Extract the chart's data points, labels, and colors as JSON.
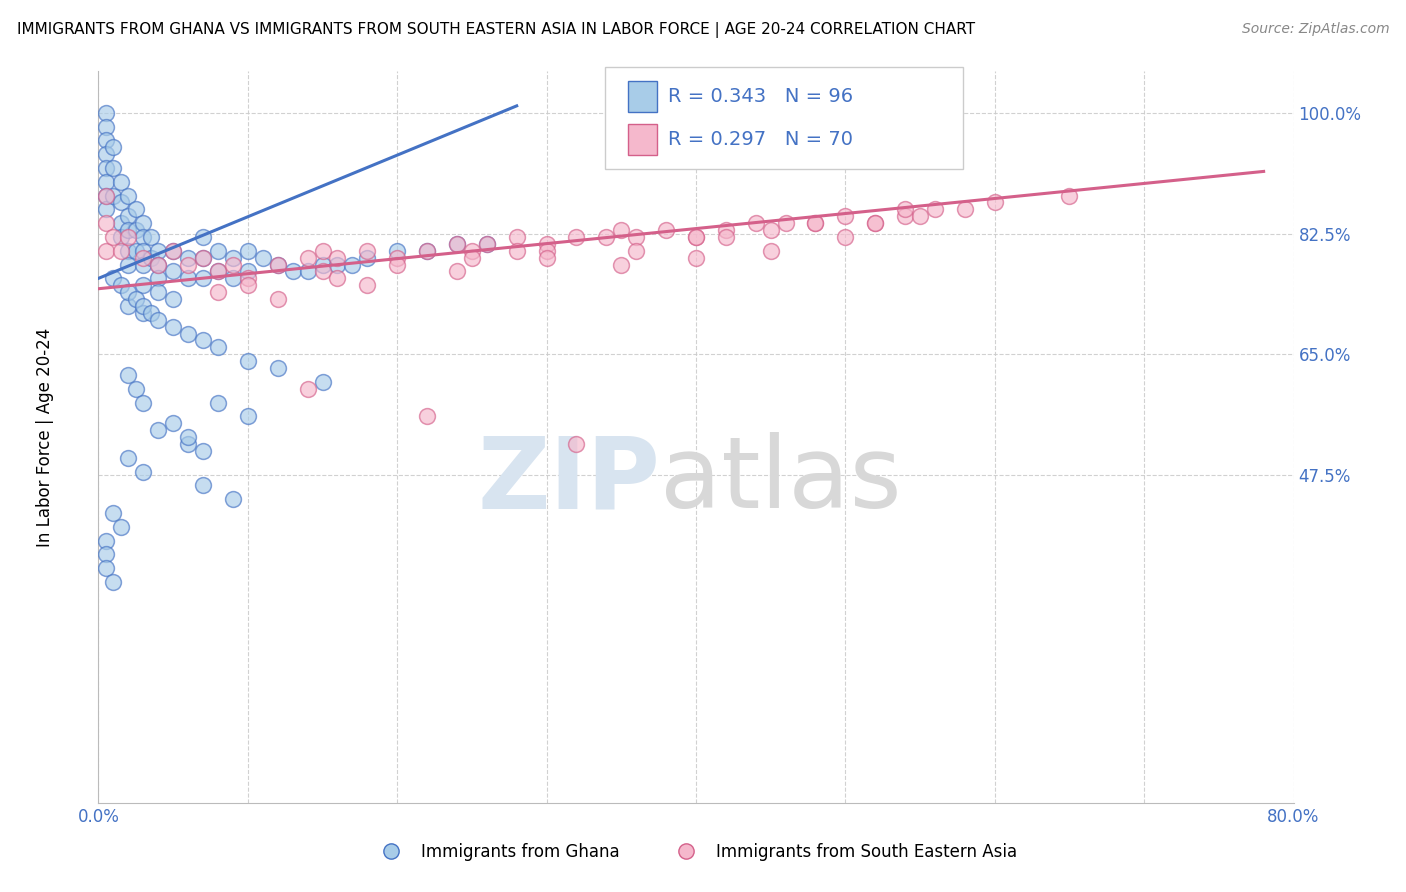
{
  "title": "IMMIGRANTS FROM GHANA VS IMMIGRANTS FROM SOUTH EASTERN ASIA IN LABOR FORCE | AGE 20-24 CORRELATION CHART",
  "source": "Source: ZipAtlas.com",
  "ylabel": "In Labor Force | Age 20-24",
  "ghana_R": 0.343,
  "ghana_N": 96,
  "sea_R": 0.297,
  "sea_N": 70,
  "ghana_color": "#a8cce8",
  "ghana_edge_color": "#4472c4",
  "sea_color": "#f5b8cc",
  "sea_edge_color": "#d4608a",
  "ghana_line_color": "#4472c4",
  "sea_line_color": "#d4608a",
  "watermark_zip_color": "#d8e4f0",
  "watermark_atlas_color": "#d8d8d8",
  "xlim_min": 0.0,
  "xlim_max": 0.8,
  "ylim_min": 0.0,
  "ylim_max": 1.06,
  "y_ticks": [
    0.475,
    0.65,
    0.825,
    1.0
  ],
  "y_tick_labels": [
    "47.5%",
    "65.0%",
    "82.5%",
    "100.0%"
  ],
  "x_ticks": [
    0.0,
    0.1,
    0.2,
    0.3,
    0.4,
    0.5,
    0.6,
    0.7,
    0.8
  ],
  "ghana_line_x0": 0.0,
  "ghana_line_x1": 0.28,
  "ghana_line_y0": 0.76,
  "ghana_line_y1": 1.01,
  "sea_line_x0": 0.0,
  "sea_line_x1": 0.78,
  "sea_line_y0": 0.745,
  "sea_line_y1": 0.915,
  "bottom_legend_ghana": "Immigrants from Ghana",
  "bottom_legend_sea": "Immigrants from South Eastern Asia",
  "legend_text_color": "#4472c4",
  "ghana_x": [
    0.005,
    0.005,
    0.005,
    0.005,
    0.005,
    0.005,
    0.005,
    0.005,
    0.01,
    0.01,
    0.01,
    0.015,
    0.015,
    0.015,
    0.015,
    0.02,
    0.02,
    0.02,
    0.02,
    0.02,
    0.025,
    0.025,
    0.025,
    0.03,
    0.03,
    0.03,
    0.03,
    0.035,
    0.035,
    0.04,
    0.04,
    0.04,
    0.05,
    0.05,
    0.06,
    0.06,
    0.07,
    0.07,
    0.07,
    0.08,
    0.08,
    0.09,
    0.09,
    0.1,
    0.1,
    0.11,
    0.12,
    0.13,
    0.14,
    0.15,
    0.16,
    0.17,
    0.18,
    0.2,
    0.22,
    0.24,
    0.26,
    0.03,
    0.04,
    0.05,
    0.02,
    0.03,
    0.01,
    0.015,
    0.02,
    0.025,
    0.03,
    0.035,
    0.04,
    0.05,
    0.06,
    0.07,
    0.08,
    0.1,
    0.12,
    0.15,
    0.08,
    0.1,
    0.04,
    0.06,
    0.02,
    0.03,
    0.07,
    0.09,
    0.01,
    0.015,
    0.005,
    0.005,
    0.005,
    0.01,
    0.02,
    0.025,
    0.03,
    0.05,
    0.06,
    0.07
  ],
  "ghana_y": [
    1.0,
    0.98,
    0.96,
    0.94,
    0.92,
    0.9,
    0.88,
    0.86,
    0.95,
    0.92,
    0.88,
    0.9,
    0.87,
    0.84,
    0.82,
    0.88,
    0.85,
    0.83,
    0.8,
    0.78,
    0.86,
    0.83,
    0.8,
    0.84,
    0.82,
    0.8,
    0.78,
    0.82,
    0.79,
    0.8,
    0.78,
    0.76,
    0.8,
    0.77,
    0.79,
    0.76,
    0.82,
    0.79,
    0.76,
    0.8,
    0.77,
    0.79,
    0.76,
    0.8,
    0.77,
    0.79,
    0.78,
    0.77,
    0.77,
    0.78,
    0.78,
    0.78,
    0.79,
    0.8,
    0.8,
    0.81,
    0.81,
    0.75,
    0.74,
    0.73,
    0.72,
    0.71,
    0.76,
    0.75,
    0.74,
    0.73,
    0.72,
    0.71,
    0.7,
    0.69,
    0.68,
    0.67,
    0.66,
    0.64,
    0.63,
    0.61,
    0.58,
    0.56,
    0.54,
    0.52,
    0.5,
    0.48,
    0.46,
    0.44,
    0.42,
    0.4,
    0.38,
    0.36,
    0.34,
    0.32,
    0.62,
    0.6,
    0.58,
    0.55,
    0.53,
    0.51
  ],
  "sea_x": [
    0.005,
    0.005,
    0.005,
    0.01,
    0.015,
    0.02,
    0.03,
    0.04,
    0.05,
    0.06,
    0.07,
    0.08,
    0.09,
    0.1,
    0.12,
    0.14,
    0.15,
    0.16,
    0.18,
    0.2,
    0.22,
    0.24,
    0.25,
    0.26,
    0.28,
    0.3,
    0.32,
    0.34,
    0.35,
    0.36,
    0.38,
    0.4,
    0.42,
    0.44,
    0.45,
    0.46,
    0.48,
    0.5,
    0.52,
    0.54,
    0.55,
    0.56,
    0.58,
    0.6,
    0.65,
    0.1,
    0.15,
    0.2,
    0.25,
    0.3,
    0.35,
    0.4,
    0.45,
    0.5,
    0.12,
    0.18,
    0.24,
    0.3,
    0.36,
    0.42,
    0.48,
    0.54,
    0.08,
    0.16,
    0.28,
    0.4,
    0.52,
    0.14,
    0.22,
    0.32
  ],
  "sea_y": [
    0.88,
    0.84,
    0.8,
    0.82,
    0.8,
    0.82,
    0.79,
    0.78,
    0.8,
    0.78,
    0.79,
    0.77,
    0.78,
    0.76,
    0.78,
    0.79,
    0.8,
    0.79,
    0.8,
    0.79,
    0.8,
    0.81,
    0.8,
    0.81,
    0.82,
    0.81,
    0.82,
    0.82,
    0.83,
    0.82,
    0.83,
    0.82,
    0.83,
    0.84,
    0.83,
    0.84,
    0.84,
    0.85,
    0.84,
    0.85,
    0.85,
    0.86,
    0.86,
    0.87,
    0.88,
    0.75,
    0.77,
    0.78,
    0.79,
    0.8,
    0.78,
    0.79,
    0.8,
    0.82,
    0.73,
    0.75,
    0.77,
    0.79,
    0.8,
    0.82,
    0.84,
    0.86,
    0.74,
    0.76,
    0.8,
    0.82,
    0.84,
    0.6,
    0.56,
    0.52
  ]
}
